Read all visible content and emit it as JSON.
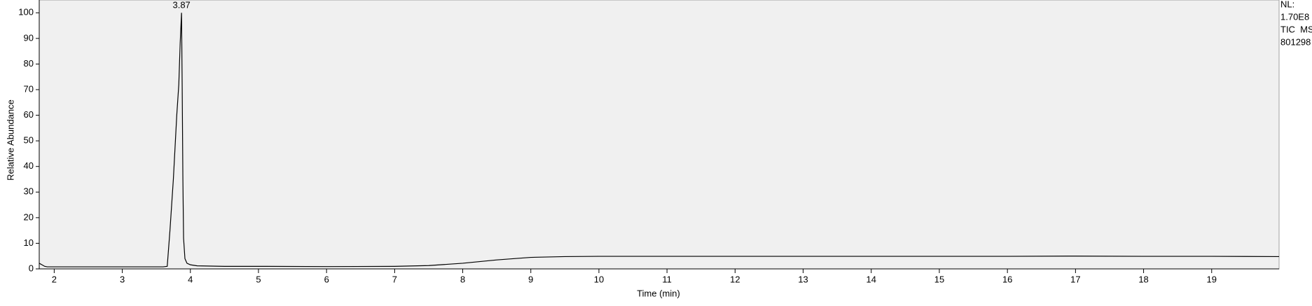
{
  "chart_data": {
    "type": "line",
    "x_label": "Time (min)",
    "y_label": "Relative Abundance",
    "series": [
      {
        "name": "TIC",
        "color": "#000000",
        "x": [
          1.78,
          1.82,
          1.86,
          1.9,
          2.5,
          3.0,
          3.6,
          3.66,
          3.7,
          3.75,
          3.8,
          3.83,
          3.85,
          3.87,
          3.88,
          3.89,
          3.9,
          3.92,
          3.95,
          4.0,
          4.1,
          4.5,
          5.0,
          6.0,
          7.0,
          7.5,
          8.0,
          8.5,
          9.0,
          9.5,
          10.0,
          11.0,
          12.0,
          13.0,
          14.0,
          15.0,
          16.0,
          17.0,
          18.0,
          19.0,
          19.99
        ],
        "values": [
          2.2,
          1.6,
          1.0,
          0.8,
          0.8,
          0.8,
          0.8,
          1.0,
          15,
          35,
          60,
          72,
          88,
          100,
          70,
          35,
          12,
          4,
          2.2,
          1.6,
          1.2,
          1.0,
          1.0,
          0.9,
          1.0,
          1.3,
          2.2,
          3.5,
          4.5,
          4.8,
          4.9,
          4.9,
          4.9,
          4.9,
          4.9,
          4.9,
          4.9,
          5.0,
          4.9,
          4.9,
          4.8
        ]
      }
    ],
    "xlim": [
      1.78,
      19.99
    ],
    "ylim": [
      0,
      105
    ],
    "xticks": [
      2,
      3,
      4,
      5,
      6,
      7,
      8,
      9,
      10,
      11,
      12,
      13,
      14,
      15,
      16,
      17,
      18,
      19
    ],
    "yticks": [
      0,
      10,
      20,
      30,
      40,
      50,
      60,
      70,
      80,
      90,
      100
    ],
    "annotations": [
      {
        "text": "3.87",
        "x": 3.87,
        "y": 100
      }
    ],
    "info": [
      "NL:",
      "1.70E8",
      "TIC  MS",
      "801298"
    ]
  }
}
